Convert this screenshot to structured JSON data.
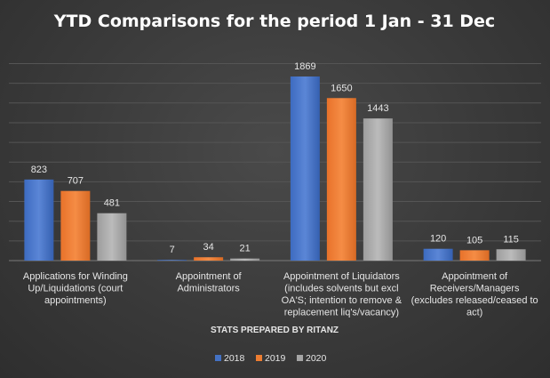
{
  "chart_data": {
    "type": "bar",
    "title": "YTD Comparisons  for the period  1 Jan - 31 Dec",
    "categories": [
      [
        "Applications for Winding",
        "Up/Liquidations (court",
        "appointments)"
      ],
      [
        "Appointment of",
        "Administrators"
      ],
      [
        "Appointment of Liquidators",
        "(includes solvents but excl",
        "OA'S; intention to remove &",
        "replacement liq's/vacancy)"
      ],
      [
        "Appointment of",
        "Receivers/Managers",
        "(excludes released/ceased to",
        "act)"
      ]
    ],
    "series": [
      {
        "name": "2018",
        "color": "#4472c4",
        "values": [
          823,
          7,
          1869,
          120
        ]
      },
      {
        "name": "2019",
        "color": "#ed7d31",
        "values": [
          707,
          34,
          1650,
          105
        ]
      },
      {
        "name": "2020",
        "color": "#a5a5a5",
        "values": [
          481,
          21,
          1443,
          115
        ]
      }
    ],
    "ylim": [
      0,
      2000
    ],
    "grid": true,
    "y_axis_labels_shown": false,
    "legend_position": "bottom",
    "note": "STATS PREPARED BY RITANZ"
  }
}
